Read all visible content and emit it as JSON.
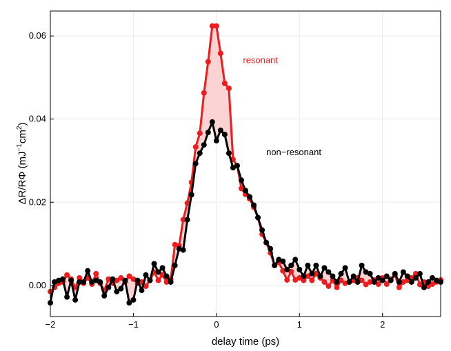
{
  "chart_data": {
    "type": "line",
    "title": "",
    "xlabel": "delay time (ps)",
    "ylabel": {
      "main": "ΔR/RΦ (mJ",
      "exp1": "−1",
      "mid": "cm",
      "exp2": "2",
      "end": ")"
    },
    "xlim": [
      -2.0,
      2.7
    ],
    "ylim": [
      -0.0075,
      0.066
    ],
    "xticks": [
      -2,
      -1,
      0,
      1,
      2
    ],
    "xtick_labels": [
      "−2",
      "−1",
      "0",
      "1",
      "2"
    ],
    "yticks": [
      0.0,
      0.02,
      0.04,
      0.06
    ],
    "ytick_labels": [
      "0.00",
      "0.02",
      "0.04",
      "0.06"
    ],
    "grid": true,
    "fill_between_series": true,
    "fill_color": "#fbd3d3",
    "series": [
      {
        "name": "resonant",
        "color": "#ee1c1c",
        "x": [
          -2.0,
          -1.95,
          -1.9,
          -1.85,
          -1.8,
          -1.75,
          -1.7,
          -1.65,
          -1.6,
          -1.55,
          -1.5,
          -1.45,
          -1.4,
          -1.35,
          -1.3,
          -1.25,
          -1.2,
          -1.15,
          -1.1,
          -1.05,
          -1.0,
          -0.95,
          -0.9,
          -0.85,
          -0.8,
          -0.75,
          -0.7,
          -0.65,
          -0.6,
          -0.55,
          -0.5,
          -0.45,
          -0.4,
          -0.35,
          -0.3,
          -0.25,
          -0.2,
          -0.15,
          -0.1,
          -0.05,
          0.0,
          0.05,
          0.1,
          0.15,
          0.2,
          0.25,
          0.3,
          0.35,
          0.4,
          0.45,
          0.5,
          0.55,
          0.6,
          0.65,
          0.7,
          0.75,
          0.8,
          0.85,
          0.9,
          0.95,
          1.0,
          1.05,
          1.1,
          1.15,
          1.2,
          1.25,
          1.3,
          1.35,
          1.4,
          1.45,
          1.5,
          1.55,
          1.6,
          1.65,
          1.7,
          1.75,
          1.8,
          1.85,
          1.9,
          1.95,
          2.0,
          2.05,
          2.1,
          2.15,
          2.2,
          2.25,
          2.3,
          2.35,
          2.4,
          2.45,
          2.5,
          2.55,
          2.6,
          2.65,
          2.7
        ],
        "values": [
          -0.0015,
          -0.0005,
          0.0005,
          0.0008,
          0.0025,
          0.0015,
          -0.0005,
          0.0018,
          0.0005,
          0.0018,
          0.0003,
          0.0028,
          0.0005,
          -0.0012,
          0.0015,
          0.0005,
          0.0012,
          0.0018,
          0.0008,
          0.0022,
          0.0015,
          0.0005,
          0.0008,
          -0.0002,
          0.0012,
          0.0032,
          0.0012,
          0.0025,
          0.0008,
          0.0015,
          0.0098,
          0.0095,
          0.0158,
          0.0198,
          0.0248,
          0.0333,
          0.0366,
          0.0463,
          0.0538,
          0.0624,
          0.0624,
          0.0558,
          0.0486,
          0.0474,
          0.0303,
          0.0288,
          0.0233,
          0.0219,
          0.0208,
          0.0188,
          0.0163,
          0.0123,
          0.0103,
          0.0078,
          0.0048,
          0.0055,
          0.0035,
          0.0013,
          0.0033,
          0.0013,
          0.0018,
          0.0012,
          0.0022,
          0.0012,
          0.0028,
          0.0018,
          0.0008,
          -0.0002,
          0.0012,
          -0.0005,
          0.0012,
          0.0005,
          0.0008,
          0.0012,
          0.0018,
          0.0012,
          0.0002,
          0.0008,
          0.0013,
          0.0003,
          0.0018,
          0.0003,
          0.0015,
          0.0025,
          -0.0005,
          0.0008,
          0.0012,
          0.0018,
          0.0028,
          0.0002,
          0.0008,
          -0.0002,
          0.0003,
          0.0008,
          0.0013
        ]
      },
      {
        "name": "non−resonant",
        "color": "#000000",
        "x": [
          -2.0,
          -1.95,
          -1.9,
          -1.85,
          -1.8,
          -1.75,
          -1.7,
          -1.65,
          -1.6,
          -1.55,
          -1.5,
          -1.45,
          -1.4,
          -1.35,
          -1.3,
          -1.25,
          -1.2,
          -1.15,
          -1.1,
          -1.05,
          -1.0,
          -0.95,
          -0.9,
          -0.85,
          -0.8,
          -0.75,
          -0.7,
          -0.65,
          -0.6,
          -0.55,
          -0.5,
          -0.45,
          -0.4,
          -0.35,
          -0.3,
          -0.25,
          -0.2,
          -0.15,
          -0.1,
          -0.05,
          0.0,
          0.05,
          0.1,
          0.15,
          0.2,
          0.25,
          0.3,
          0.35,
          0.4,
          0.45,
          0.5,
          0.55,
          0.6,
          0.65,
          0.7,
          0.75,
          0.8,
          0.85,
          0.9,
          0.95,
          1.0,
          1.05,
          1.1,
          1.15,
          1.2,
          1.25,
          1.3,
          1.35,
          1.4,
          1.45,
          1.5,
          1.55,
          1.6,
          1.65,
          1.7,
          1.75,
          1.8,
          1.85,
          1.9,
          1.95,
          2.0,
          2.05,
          2.1,
          2.15,
          2.2,
          2.25,
          2.3,
          2.35,
          2.4,
          2.45,
          2.5,
          2.55,
          2.6,
          2.65,
          2.7
        ],
        "values": [
          -0.0042,
          0.0008,
          0.0012,
          0.0015,
          -0.0028,
          0.0012,
          -0.0035,
          0.0008,
          0.0008,
          0.0035,
          0.0008,
          0.0012,
          0.0008,
          -0.0025,
          -0.0005,
          0.0015,
          -0.0015,
          -0.0008,
          0.0012,
          -0.0042,
          -0.0035,
          0.0012,
          -0.0012,
          0.0025,
          0.0012,
          0.0052,
          0.0032,
          0.0042,
          0.0022,
          0.0008,
          0.0048,
          0.0088,
          0.0085,
          0.0158,
          0.0218,
          0.0293,
          0.0318,
          0.0338,
          0.0368,
          0.0393,
          0.0348,
          0.0373,
          0.0363,
          0.0318,
          0.0283,
          0.0288,
          0.0253,
          0.0228,
          0.0213,
          0.0193,
          0.0163,
          0.0133,
          0.0103,
          0.0088,
          0.0048,
          0.0062,
          0.0058,
          0.0038,
          0.0048,
          0.0062,
          0.0038,
          0.0022,
          0.0048,
          0.0028,
          0.0048,
          0.0022,
          0.0042,
          0.0032,
          0.0022,
          0.0008,
          0.0028,
          0.0042,
          0.0008,
          0.0022,
          0.0008,
          0.0048,
          0.0032,
          0.0028,
          0.0008,
          0.0018,
          0.0012,
          0.0022,
          0.0012,
          0.0028,
          0.0008,
          0.0032,
          0.0022,
          0.0008,
          0.0018,
          0.0028,
          -0.0005,
          0.0008,
          0.0018,
          0.0012,
          0.0008
        ]
      }
    ],
    "annotations": [
      {
        "text": "resonant",
        "x": 0.32,
        "y": 0.0535,
        "color": "#ee1c1c"
      },
      {
        "text": "non−resonant",
        "x": 0.6,
        "y": 0.0313,
        "color": "#000000"
      }
    ]
  }
}
